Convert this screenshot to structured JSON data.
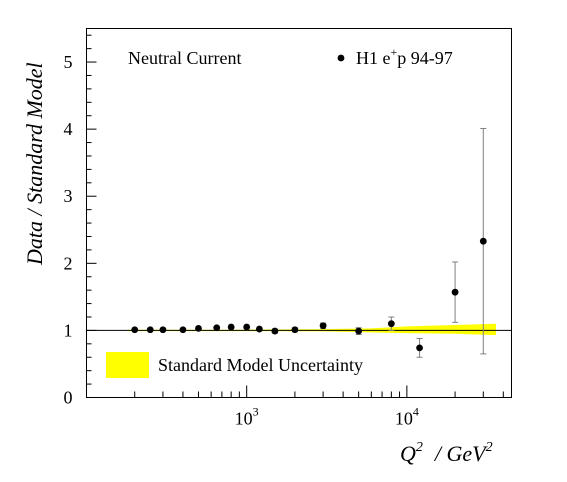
{
  "chart_data": {
    "type": "scatter",
    "title": "",
    "xlabel_main": "Q",
    "xlabel_sup": "2",
    "xlabel_unit": "/ GeV",
    "xlabel_unit_sup": "2",
    "ylabel": "Data / Standard Model",
    "xscale": "log",
    "xlim": [
      100,
      45000
    ],
    "ylim": [
      0,
      5.5
    ],
    "yticks": [
      0,
      1,
      2,
      3,
      4,
      5
    ],
    "x_major_ticks": [
      {
        "value": 1000,
        "base": "10",
        "exp": "3"
      },
      {
        "value": 10000,
        "base": "10",
        "exp": "4"
      }
    ],
    "reference_line": 1,
    "annotations": {
      "process": "Neutral Current",
      "dataset_prefix": "H1 e",
      "dataset_sup": "+",
      "dataset_suffix": "p 94-97",
      "band_label": "Standard Model Uncertainty"
    },
    "series": [
      {
        "name": "H1 e+p 94-97",
        "marker": "filled-circle",
        "color": "#000000",
        "points": [
          {
            "x": 200,
            "y": 1.01,
            "err": 0.01
          },
          {
            "x": 250,
            "y": 1.01,
            "err": 0.01
          },
          {
            "x": 300,
            "y": 1.01,
            "err": 0.01
          },
          {
            "x": 400,
            "y": 1.01,
            "err": 0.01
          },
          {
            "x": 500,
            "y": 1.03,
            "err": 0.01
          },
          {
            "x": 650,
            "y": 1.04,
            "err": 0.01
          },
          {
            "x": 800,
            "y": 1.05,
            "err": 0.02
          },
          {
            "x": 1000,
            "y": 1.05,
            "err": 0.02
          },
          {
            "x": 1200,
            "y": 1.02,
            "err": 0.02
          },
          {
            "x": 1500,
            "y": 0.99,
            "err": 0.03
          },
          {
            "x": 2000,
            "y": 1.01,
            "err": 0.03
          },
          {
            "x": 3000,
            "y": 1.07,
            "err": 0.04
          },
          {
            "x": 5000,
            "y": 0.99,
            "err": 0.05
          },
          {
            "x": 8000,
            "y": 1.1,
            "err": 0.1
          },
          {
            "x": 12000,
            "y": 0.74,
            "err": 0.14
          },
          {
            "x": 20000,
            "y": 1.57,
            "err": 0.45
          },
          {
            "x": 30000,
            "y": 2.33,
            "err": 1.68
          }
        ]
      }
    ],
    "band": {
      "name": "Standard Model Uncertainty",
      "color": "#ffff00",
      "points": [
        {
          "x": 180,
          "low": 0.99,
          "high": 1.01
        },
        {
          "x": 1000,
          "low": 0.99,
          "high": 1.01
        },
        {
          "x": 3000,
          "low": 0.985,
          "high": 1.02
        },
        {
          "x": 6000,
          "low": 0.97,
          "high": 1.03
        },
        {
          "x": 10000,
          "low": 0.96,
          "high": 1.06
        },
        {
          "x": 20000,
          "low": 0.95,
          "high": 1.08
        },
        {
          "x": 36000,
          "low": 0.93,
          "high": 1.1
        }
      ]
    }
  }
}
